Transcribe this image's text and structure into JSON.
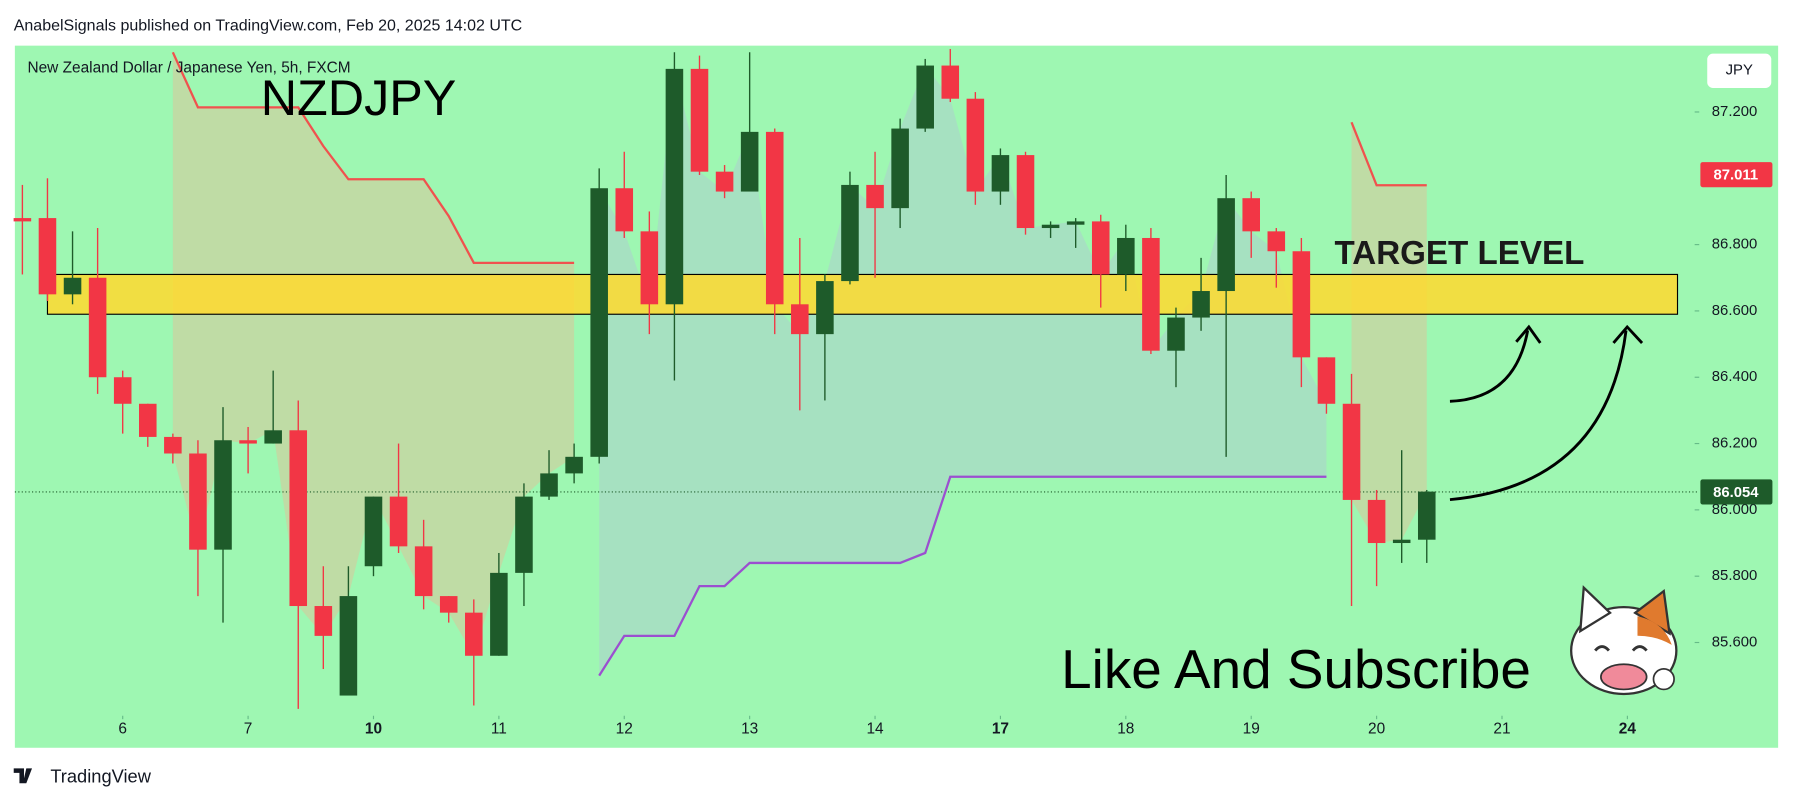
{
  "header": "AnabelSignals published on TradingView.com, Feb 20, 2025 14:02 UTC",
  "footer": "TradingView",
  "chart_data": {
    "type": "candlestick",
    "title": "NZDJPY",
    "subtitle": "New Zealand Dollar / Japanese Yen, 5h, FXCM",
    "currency": "JPY",
    "background": "#9ef7b2",
    "up_color": "#1e5b2a",
    "down_color": "#f23645",
    "open": [
      86.88,
      86.88,
      86.65,
      86.7,
      86.4,
      86.32,
      86.22,
      86.17,
      85.88,
      86.21,
      86.2,
      86.24,
      85.71,
      85.44,
      85.83,
      86.04,
      85.89,
      85.74,
      85.69,
      85.56,
      85.81,
      86.04,
      86.11,
      86.16,
      86.97,
      86.84,
      86.62,
      87.33,
      87.02,
      86.96,
      87.14,
      86.62,
      86.53,
      86.69,
      86.98,
      86.91,
      87.15,
      87.34,
      87.24,
      86.96,
      87.07,
      86.85,
      86.86,
      86.87,
      86.71,
      86.82,
      86.48,
      86.58,
      86.66,
      86.94,
      86.84,
      86.78,
      86.46,
      86.32,
      86.03,
      85.9,
      85.91
    ],
    "high": [
      86.98,
      87.0,
      86.84,
      86.85,
      86.42,
      86.32,
      86.23,
      86.21,
      86.31,
      86.25,
      86.42,
      86.33,
      85.83,
      85.83,
      86.04,
      86.2,
      85.97,
      85.74,
      85.73,
      85.87,
      86.08,
      86.18,
      86.2,
      87.03,
      87.08,
      86.9,
      87.38,
      87.37,
      87.04,
      87.38,
      87.15,
      86.82,
      86.71,
      87.02,
      87.08,
      87.18,
      87.36,
      87.39,
      87.26,
      87.09,
      87.08,
      86.87,
      86.88,
      86.89,
      86.86,
      86.85,
      86.61,
      86.76,
      87.01,
      86.96,
      86.85,
      86.82,
      86.46,
      86.41,
      86.06,
      86.18,
      86.06
    ],
    "low": [
      86.71,
      86.63,
      86.62,
      86.35,
      86.23,
      86.19,
      86.14,
      85.74,
      85.66,
      86.11,
      86.2,
      85.4,
      85.52,
      85.44,
      85.8,
      85.87,
      85.7,
      85.66,
      85.41,
      85.56,
      85.71,
      86.03,
      86.08,
      86.14,
      86.82,
      86.53,
      86.39,
      87.01,
      86.94,
      86.96,
      86.53,
      86.3,
      86.33,
      86.68,
      86.7,
      86.85,
      87.14,
      87.23,
      86.92,
      86.92,
      86.83,
      86.82,
      86.79,
      86.61,
      86.66,
      86.47,
      86.37,
      86.54,
      86.16,
      86.76,
      86.67,
      86.37,
      86.29,
      85.71,
      85.77,
      85.84,
      85.84
    ],
    "close": [
      86.87,
      86.65,
      86.7,
      86.4,
      86.32,
      86.22,
      86.17,
      85.88,
      86.21,
      86.2,
      86.24,
      85.71,
      85.62,
      85.74,
      86.04,
      85.89,
      85.74,
      85.69,
      85.56,
      85.81,
      86.04,
      86.11,
      86.16,
      86.97,
      86.84,
      86.62,
      87.33,
      87.02,
      86.96,
      87.14,
      86.62,
      86.53,
      86.69,
      86.98,
      86.91,
      87.15,
      87.34,
      87.24,
      86.96,
      87.07,
      86.85,
      86.86,
      86.87,
      86.71,
      86.82,
      86.48,
      86.58,
      86.66,
      86.94,
      86.84,
      86.78,
      86.46,
      86.32,
      86.03,
      85.9,
      85.91,
      86.055
    ],
    "series": [
      {
        "color": "#f0524e",
        "area_color": "#c9d3a0",
        "values": [
          null,
          null,
          null,
          null,
          null,
          null,
          87.38,
          87.214,
          87.214,
          87.214,
          87.214,
          87.214,
          87.097,
          86.997,
          86.997,
          86.997,
          86.997,
          86.886,
          86.745,
          86.745,
          86.745,
          86.745,
          86.745,
          null,
          null,
          null,
          null,
          null,
          null,
          null,
          null,
          null,
          null,
          null,
          null,
          null,
          null,
          null,
          null,
          null,
          null,
          null,
          null,
          null,
          null,
          null,
          null,
          null,
          null,
          null,
          null,
          null,
          null,
          87.169,
          86.979,
          86.979,
          86.979
        ]
      },
      {
        "color": "#9b4fd0",
        "area_color": "#a8d9c6",
        "values": [
          null,
          null,
          null,
          null,
          null,
          null,
          null,
          null,
          null,
          null,
          null,
          null,
          null,
          null,
          null,
          null,
          null,
          null,
          null,
          null,
          null,
          null,
          null,
          85.5,
          85.62,
          85.62,
          85.62,
          85.77,
          85.77,
          85.84,
          85.84,
          85.84,
          85.84,
          85.84,
          85.84,
          85.84,
          85.87,
          86.1,
          86.1,
          86.1,
          86.1,
          86.1,
          86.1,
          86.1,
          86.1,
          86.1,
          86.1,
          86.1,
          86.1,
          86.1,
          86.1,
          86.1,
          86.1,
          null,
          null,
          null,
          null
        ]
      }
    ],
    "target_zone": {
      "top": 86.71,
      "bottom": 86.59,
      "label": "TARGET LEVEL",
      "color": "#ffd92e"
    },
    "annotation": "Like And Subscribe",
    "last_price": 86.054,
    "level_price": 87.011,
    "ylim": [
      85.386,
      87.4
    ],
    "yticks": [
      {
        "value": 85.6,
        "label": "85.600"
      },
      {
        "value": 85.8,
        "label": "85.800"
      },
      {
        "value": 86.0,
        "label": "86.000"
      },
      {
        "value": 86.2,
        "label": "86.200"
      },
      {
        "value": 86.4,
        "label": "86.400"
      },
      {
        "value": 86.6,
        "label": "86.600"
      },
      {
        "value": 86.8,
        "label": "86.800"
      },
      {
        "value": 87.2,
        "label": "87.200"
      }
    ],
    "xlim": [
      -0.3,
      66.5
    ],
    "xticks": [
      {
        "value": 4,
        "label": "6"
      },
      {
        "value": 9,
        "label": "7"
      },
      {
        "value": 14,
        "label": "10",
        "bold": true
      },
      {
        "value": 19,
        "label": "11"
      },
      {
        "value": 24,
        "label": "12"
      },
      {
        "value": 29,
        "label": "13"
      },
      {
        "value": 34,
        "label": "14"
      },
      {
        "value": 39,
        "label": "17",
        "bold": true
      },
      {
        "value": 44,
        "label": "18"
      },
      {
        "value": 49,
        "label": "19"
      },
      {
        "value": 54,
        "label": "20"
      },
      {
        "value": 59,
        "label": "21"
      },
      {
        "value": 64,
        "label": "24",
        "bold": true
      }
    ]
  }
}
